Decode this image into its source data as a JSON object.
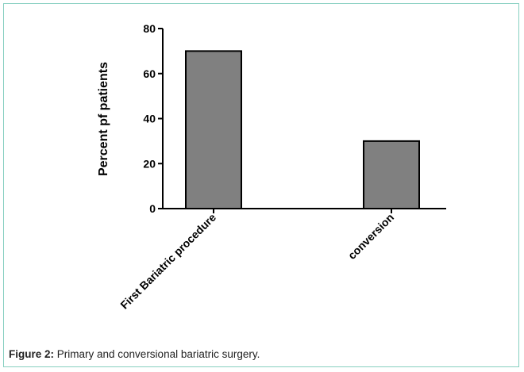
{
  "chart_data": {
    "type": "bar",
    "categories": [
      "First Bariatric procedure",
      "conversion"
    ],
    "values": [
      70,
      30
    ],
    "title": "",
    "xlabel": "",
    "ylabel": "Percent pf patients",
    "ylim": [
      0,
      80
    ],
    "yticks": [
      0,
      20,
      40,
      60,
      80
    ],
    "bar_color": "#808080",
    "grid": false
  },
  "caption": {
    "label": "Figure 2:",
    "text": " Primary and conversional bariatric surgery."
  },
  "colors": {
    "frame_border": "#86cfc0",
    "bar_fill": "#808080",
    "bar_stroke": "#000000"
  }
}
